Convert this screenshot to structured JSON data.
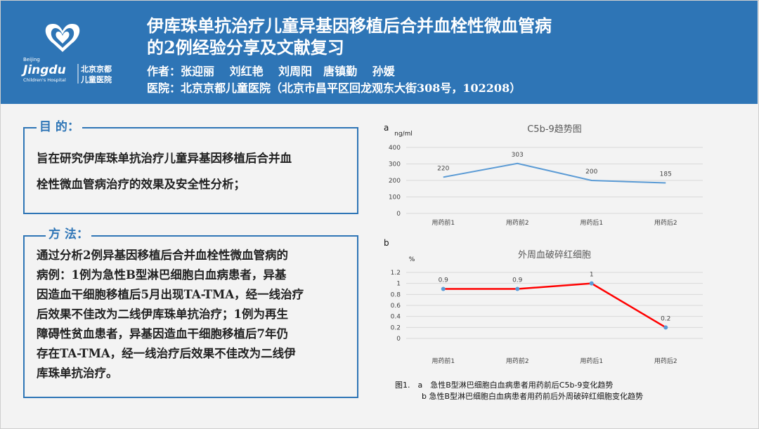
{
  "header": {
    "logo": {
      "small_text": "Beijing",
      "brand": "Jingdu",
      "hospital_en": "Children's Hospital",
      "cn_line1": "北京京都",
      "cn_line2": "儿童医院"
    },
    "title_line1": "伊库珠单抗治疗儿童异基因移植后合并血栓性微血管病",
    "title_line2": "的2例经验分享及文献复习",
    "authors": "作者：张迎丽　 刘红艳　 刘周阳　唐镇勤　 孙媛",
    "hospital": "医院：北京京都儿童医院（北京市昌平区回龙观东大街308号，102208）"
  },
  "purpose": {
    "heading": "目 的：",
    "lines": [
      "旨在研究伊库珠单抗治疗儿童异基因移植后合并血",
      "栓性微血管病治疗的效果及安全性分析；"
    ]
  },
  "method": {
    "heading": "方 法：",
    "lines": [
      "通过分析2例异基因移植后合并血栓性微血管病的",
      "病例：1例为急性B型淋巴细胞白血病患者，异基",
      "因造血干细胞移植后5月出现TA-TMA，经一线治疗",
      "后效果不佳改为二线伊库珠单抗治疗；1例为再生",
      "障碍性贫血患者，异基因造血干细胞移植后7年仍",
      "存在TA-TMA，经一线治疗后效果不佳改为二线伊",
      "库珠单抗治疗。"
    ]
  },
  "chart_data": [
    {
      "type": "line",
      "panel": "a",
      "title": "C5b-9趋势图",
      "ylabel": "ng/ml",
      "categories": [
        "用药前1",
        "用药前2",
        "用药后1",
        "用药后2"
      ],
      "values": [
        220,
        303,
        200,
        185
      ],
      "data_labels": [
        "220",
        "303",
        "200",
        "185"
      ],
      "ylim": [
        0,
        400
      ],
      "yticks": [
        0,
        100,
        200,
        300,
        400
      ],
      "color": "#5b9bd5",
      "grid": true
    },
    {
      "type": "line",
      "panel": "b",
      "title": "外周血破碎红细胞",
      "ylabel": "%",
      "categories": [
        "用药前1",
        "用药前2",
        "用药后1",
        "用药后2"
      ],
      "values": [
        0.9,
        0.9,
        1,
        0.2
      ],
      "data_labels": [
        "0.9",
        "0.9",
        "1",
        "0.2"
      ],
      "ylim": [
        0,
        1.2
      ],
      "yticks": [
        0,
        0.2,
        0.4,
        0.6,
        0.8,
        1,
        1.2
      ],
      "color": "#ff0000",
      "marker_color": "#5b9bd5",
      "grid": true
    }
  ],
  "caption": {
    "line1": "图1.　a　急性B型淋巴细胞白血病患者用药前后C5b-9变化趋势",
    "line2": "b 急性B型淋巴细胞白血病患者用药前后外周破碎红细胞变化趋势"
  }
}
